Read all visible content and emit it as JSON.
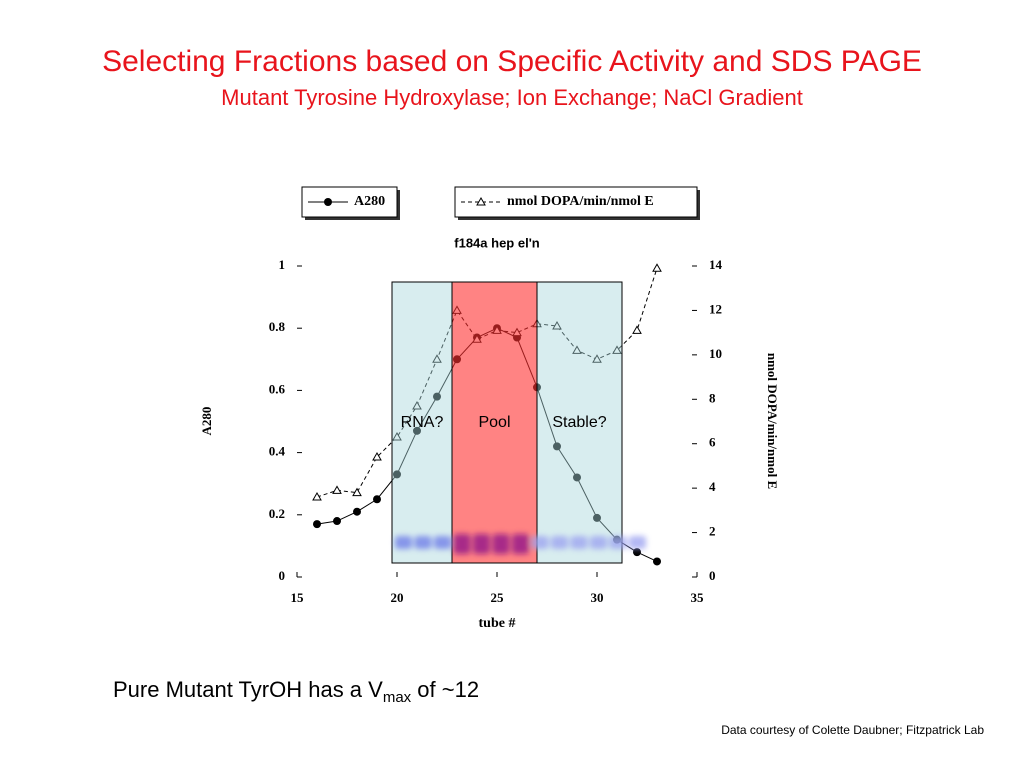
{
  "slide": {
    "title": "Selecting Fractions based on Specific Activity and SDS PAGE",
    "subtitle": "Mutant Tyrosine Hydroxylase; Ion Exchange; NaCl Gradient",
    "note": [
      "Pure Mutant TyrOH has a V",
      "max",
      " of ~12"
    ],
    "credit": "Data courtesy of Colette Daubner; Fitzpatrick Lab"
  },
  "chart_data": {
    "type": "line",
    "title": "f184a hep el'n",
    "x_label": "tube #",
    "y_label": "A280",
    "y2_label": "nmol DOPA/min/nmol E",
    "x": [
      16,
      17,
      18,
      19,
      20,
      21,
      22,
      23,
      24,
      25,
      26,
      27,
      28,
      29,
      30,
      31,
      32,
      33
    ],
    "series": [
      {
        "name": "A280",
        "color": "#000000",
        "marker": "circle",
        "dash": false,
        "values": [
          0.17,
          0.18,
          0.21,
          0.25,
          0.33,
          0.47,
          0.58,
          0.7,
          0.77,
          0.8,
          0.77,
          0.61,
          0.42,
          0.32,
          0.19,
          0.12,
          0.08,
          0.05
        ]
      },
      {
        "name": "nmol DOPA/min/nmol E",
        "color": "#000000",
        "marker": "triangle",
        "dash": true,
        "axis": "y2",
        "values": [
          3.6,
          3.9,
          3.8,
          5.4,
          6.3,
          7.7,
          9.8,
          12.0,
          10.7,
          11.1,
          11.0,
          11.4,
          11.3,
          10.2,
          9.8,
          10.2,
          11.1,
          13.9
        ]
      }
    ],
    "regions": [
      {
        "label": "RNA?",
        "start": 19.75,
        "end": 22.75,
        "color": "#a8d8dc"
      },
      {
        "label": "Pool",
        "start": 22.75,
        "end": 27,
        "color": "#ff3030"
      },
      {
        "label": "Stable?",
        "start": 27,
        "end": 31.25,
        "color": "#a8d8dc"
      }
    ],
    "xlim": [
      15,
      35
    ],
    "xticks": [
      15,
      20,
      25,
      30,
      35
    ],
    "ylim": [
      0,
      1
    ],
    "yticks": [
      0,
      0.2,
      0.4,
      0.6,
      0.8,
      1
    ],
    "y2lim": [
      0,
      14
    ],
    "y2ticks": [
      0,
      2,
      4,
      6,
      8,
      10,
      12,
      14
    ]
  }
}
